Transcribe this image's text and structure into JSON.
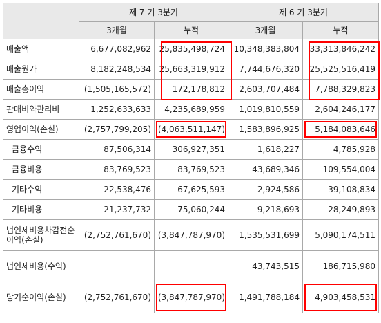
{
  "header": {
    "period_7": "제 7 기 3분기",
    "period_6": "제 6 기 3분기",
    "col_3m": "3개월",
    "col_cum": "누적"
  },
  "rows": [
    {
      "label": "매출액",
      "v": [
        "6,677,082,962",
        "25,835,498,724",
        "10,348,383,804",
        "33,313,846,242"
      ]
    },
    {
      "label": "매출원가",
      "v": [
        "8,182,248,534",
        "25,663,319,912",
        "7,744,676,320",
        "25,525,516,419"
      ]
    },
    {
      "label": "매출총이익",
      "v": [
        "(1,505,165,572)",
        "172,178,812",
        "2,603,707,484",
        "7,788,329,823"
      ]
    },
    {
      "label": "판매비와관리비",
      "v": [
        "1,252,633,633",
        "4,235,689,959",
        "1,019,810,559",
        "2,604,246,177"
      ]
    },
    {
      "label": "영업이익(손실)",
      "v": [
        "(2,757,799,205)",
        "(4,063,511,147)",
        "1,583,896,925",
        "5,184,083,646"
      ]
    },
    {
      "label": "금융수익",
      "v": [
        "87,506,314",
        "306,927,351",
        "1,618,227",
        "4,785,928"
      ]
    },
    {
      "label": "금융비용",
      "v": [
        "83,769,523",
        "83,769,523",
        "43,689,346",
        "109,554,004"
      ]
    },
    {
      "label": "기타수익",
      "v": [
        "22,538,476",
        "67,625,593",
        "2,924,586",
        "39,108,834"
      ]
    },
    {
      "label": "기타비용",
      "v": [
        "21,237,732",
        "75,060,244",
        "9,218,693",
        "28,249,893"
      ]
    },
    {
      "label": "법인세비용차감전순이익(손실)",
      "v": [
        "(2,752,761,670)",
        "(3,847,787,970)",
        "1,535,531,699",
        "5,090,174,511"
      ]
    },
    {
      "label": "법인세비용(수익)",
      "v": [
        "",
        "",
        "43,743,515",
        "186,715,980"
      ]
    },
    {
      "label": "당기순이익(손실)",
      "v": [
        "(2,752,761,670)",
        "(3,847,787,970)",
        "1,491,788,184",
        "4,903,458,531"
      ]
    }
  ],
  "highlight_color": "#ff0000"
}
